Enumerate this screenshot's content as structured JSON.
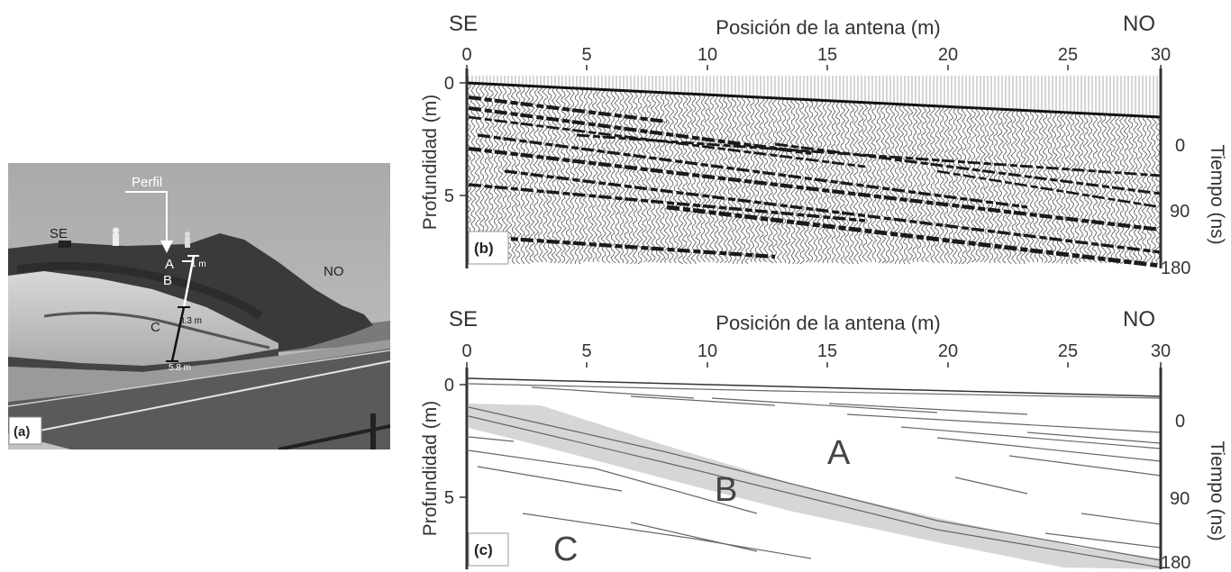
{
  "panel_a": {
    "tag": "(a)",
    "label_se": "SE",
    "label_no": "NO",
    "label_profile": "Perfil",
    "units": [
      {
        "letter": "A"
      },
      {
        "letter": "B"
      },
      {
        "letter": "C"
      }
    ],
    "marks": [
      {
        "text": "1 m"
      },
      {
        "text": "3.3 m"
      },
      {
        "text": "5.8 m"
      }
    ]
  },
  "panel_b": {
    "tag": "(b)",
    "left_dir": "SE",
    "right_dir": "NO",
    "x_title": "Posición de la antena (m)",
    "x_ticks": [
      "0",
      "5",
      "10",
      "15",
      "20",
      "25",
      "30"
    ],
    "y_title": "Profundidad (m)",
    "y_ticks": [
      "0",
      "5"
    ],
    "y2_title": "Tiempo (ns)",
    "y2_ticks": [
      "0",
      "90",
      "180"
    ]
  },
  "panel_c": {
    "tag": "(c)",
    "left_dir": "SE",
    "right_dir": "NO",
    "x_title": "Posición de la antena (m)",
    "x_ticks": [
      "0",
      "5",
      "10",
      "15",
      "20",
      "25",
      "30"
    ],
    "y_title": "Profundidad (m)",
    "y_ticks": [
      "0",
      "5"
    ],
    "y2_title": "Tiempo (ns)",
    "y2_ticks": [
      "0",
      "90",
      "180"
    ],
    "unit_labels": [
      "A",
      "B",
      "C"
    ]
  },
  "colors": {
    "axis": "#333333",
    "sky": "#b4b4b4",
    "rock_dark": "#3c3c3c",
    "rock_light": "#c8c8c8",
    "unit_b_fill": "#d6d6d6",
    "road": "#5a5a5a"
  }
}
